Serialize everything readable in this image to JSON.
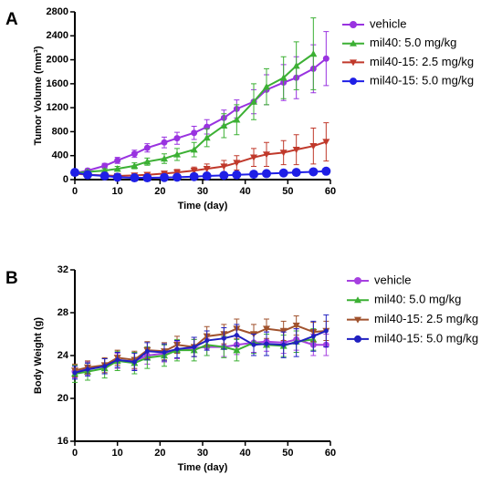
{
  "chart_data": [
    {
      "type": "line",
      "panel_label": "A",
      "xlabel": "Time (day)",
      "ylabel": "Tumor Volume (mm³)",
      "xlim": [
        0,
        60
      ],
      "xticks": [
        0,
        10,
        20,
        30,
        40,
        50,
        60
      ],
      "ylim": [
        0,
        2800
      ],
      "yticks": [
        0,
        400,
        800,
        1200,
        1600,
        2000,
        2400,
        2800
      ],
      "series": [
        {
          "name": "vehicle",
          "color": "#9933e0",
          "marker": "circle",
          "x": [
            0,
            3,
            7,
            10,
            14,
            17,
            21,
            24,
            28,
            31,
            35,
            38,
            42,
            45,
            49,
            52,
            56,
            59
          ],
          "values": [
            110,
            150,
            230,
            320,
            430,
            530,
            620,
            690,
            780,
            880,
            1030,
            1180,
            1300,
            1500,
            1620,
            1700,
            1850,
            2020
          ],
          "errors": [
            20,
            30,
            40,
            50,
            60,
            70,
            90,
            100,
            110,
            120,
            130,
            150,
            200,
            250,
            300,
            350,
            400,
            450
          ]
        },
        {
          "name": "mil40: 5.0 mg/kg",
          "color": "#3cb034",
          "marker": "triangle",
          "x": [
            0,
            3,
            7,
            10,
            14,
            17,
            21,
            24,
            28,
            31,
            35,
            38,
            42,
            45,
            49,
            52,
            56
          ],
          "values": [
            110,
            130,
            150,
            180,
            230,
            300,
            350,
            420,
            500,
            700,
            900,
            1000,
            1300,
            1550,
            1700,
            1900,
            2100
          ],
          "errors": [
            20,
            20,
            30,
            40,
            50,
            60,
            80,
            100,
            120,
            150,
            200,
            250,
            300,
            300,
            350,
            400,
            600
          ]
        },
        {
          "name": "mil40-15: 2.5 mg/kg",
          "color": "#c0392b",
          "marker": "triangle-down",
          "x": [
            0,
            3,
            7,
            10,
            14,
            17,
            21,
            24,
            28,
            31,
            35,
            38,
            42,
            45,
            49,
            52,
            56,
            59
          ],
          "values": [
            100,
            80,
            70,
            60,
            70,
            80,
            100,
            120,
            150,
            180,
            220,
            280,
            370,
            420,
            450,
            500,
            560,
            630
          ],
          "errors": [
            20,
            20,
            20,
            20,
            30,
            30,
            40,
            50,
            60,
            80,
            100,
            120,
            150,
            200,
            200,
            250,
            300,
            320
          ]
        },
        {
          "name": "mil40-15: 5.0 mg/kg",
          "color": "#1f1fe6",
          "marker": "circle-large",
          "x": [
            0,
            3,
            7,
            10,
            14,
            17,
            21,
            24,
            28,
            31,
            35,
            38,
            42,
            45,
            49,
            52,
            56,
            59
          ],
          "values": [
            120,
            80,
            60,
            40,
            30,
            30,
            35,
            40,
            50,
            60,
            70,
            80,
            90,
            100,
            110,
            120,
            130,
            140
          ],
          "errors": [
            20,
            20,
            15,
            15,
            10,
            10,
            10,
            10,
            15,
            15,
            15,
            20,
            20,
            20,
            20,
            20,
            20,
            20
          ]
        }
      ]
    },
    {
      "type": "line",
      "panel_label": "B",
      "xlabel": "Time (day)",
      "ylabel": "Body Weight (g)",
      "xlim": [
        0,
        60
      ],
      "xticks": [
        0,
        10,
        20,
        30,
        40,
        50,
        60
      ],
      "ylim": [
        16,
        32
      ],
      "yticks": [
        16,
        20,
        24,
        28,
        32
      ],
      "series": [
        {
          "name": "vehicle",
          "color": "#a640e0",
          "marker": "circle",
          "x": [
            0,
            3,
            7,
            10,
            14,
            17,
            21,
            24,
            28,
            31,
            35,
            38,
            42,
            45,
            49,
            52,
            56,
            59
          ],
          "values": [
            22.5,
            22.8,
            23.0,
            23.5,
            23.5,
            24.0,
            24.2,
            24.5,
            24.7,
            24.8,
            24.8,
            25.0,
            25.2,
            25.3,
            25.2,
            25.5,
            25.0,
            25.0
          ],
          "errors": [
            0.6,
            0.6,
            0.7,
            0.7,
            0.8,
            0.8,
            0.8,
            0.8,
            0.8,
            0.8,
            0.9,
            0.9,
            0.9,
            0.9,
            1.0,
            1.0,
            1.0,
            1.0
          ]
        },
        {
          "name": "mil40: 5.0 mg/kg",
          "color": "#3cb034",
          "marker": "triangle",
          "x": [
            0,
            3,
            7,
            10,
            14,
            17,
            21,
            24,
            28,
            31,
            35,
            38,
            42,
            45,
            49,
            52,
            56
          ],
          "values": [
            22.3,
            22.5,
            22.8,
            23.5,
            23.3,
            23.8,
            24.0,
            24.5,
            24.5,
            25.0,
            24.8,
            24.5,
            25.2,
            25.0,
            24.9,
            25.3,
            25.5
          ],
          "errors": [
            0.8,
            0.8,
            0.9,
            0.9,
            1.0,
            1.0,
            1.0,
            1.0,
            1.0,
            1.0,
            1.0,
            1.0,
            1.0,
            1.0,
            1.0,
            1.0,
            1.0
          ]
        },
        {
          "name": "mil40-15: 2.5 mg/kg",
          "color": "#a0522d",
          "marker": "triangle-down",
          "x": [
            0,
            3,
            7,
            10,
            14,
            17,
            21,
            24,
            28,
            31,
            35,
            38,
            42,
            45,
            49,
            52,
            56,
            59
          ],
          "values": [
            22.6,
            22.9,
            23.1,
            23.8,
            23.6,
            24.5,
            24.4,
            25.0,
            24.8,
            25.8,
            26.0,
            26.5,
            26.0,
            26.5,
            26.3,
            26.8,
            26.2,
            26.3
          ],
          "errors": [
            0.6,
            0.6,
            0.7,
            0.7,
            0.8,
            0.8,
            0.8,
            0.8,
            0.9,
            0.9,
            0.9,
            0.9,
            0.9,
            0.9,
            0.9,
            0.9,
            0.9,
            0.9
          ]
        },
        {
          "name": "mil40-15: 5.0 mg/kg",
          "color": "#2020c0",
          "marker": "circle-small",
          "x": [
            0,
            3,
            7,
            10,
            14,
            17,
            21,
            24,
            28,
            31,
            35,
            38,
            42,
            45,
            49,
            52,
            56,
            59
          ],
          "values": [
            22.4,
            22.7,
            23.0,
            23.6,
            23.4,
            24.4,
            24.3,
            24.6,
            24.8,
            25.4,
            25.6,
            25.9,
            25.0,
            25.1,
            25.0,
            25.2,
            25.8,
            26.3
          ],
          "errors": [
            0.6,
            0.6,
            0.7,
            0.7,
            0.8,
            0.8,
            0.8,
            0.8,
            0.9,
            0.9,
            1.0,
            1.0,
            1.0,
            1.1,
            1.2,
            1.3,
            1.4,
            1.5
          ]
        }
      ]
    }
  ]
}
